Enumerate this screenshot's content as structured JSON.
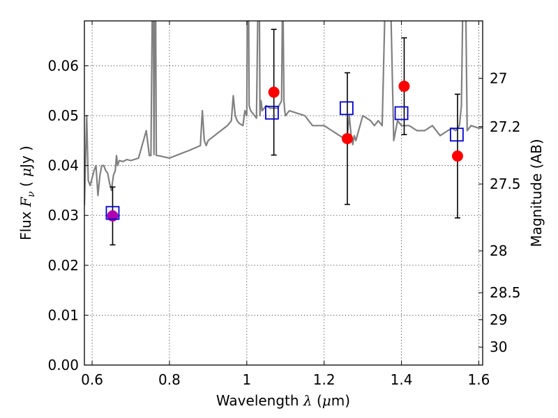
{
  "chart_data": {
    "type": "scatter",
    "title": "",
    "xlabel_parts": [
      "Wavelength  ",
      "λ",
      " (",
      "μ",
      "m)"
    ],
    "ylabel_parts": [
      "Flux  ",
      "F",
      "ν",
      "  ( ",
      "μ",
      "Jy )"
    ],
    "y2label": "Magnitude (AB)",
    "xlim": [
      0.58,
      1.61
    ],
    "ylim": [
      0.0,
      0.069
    ],
    "grid": true,
    "xticks": [
      0.6,
      0.8,
      1.0,
      1.2,
      1.4,
      1.6
    ],
    "xtick_labels": [
      "0.6",
      "0.8",
      "1",
      "1.2",
      "1.4",
      "1.6"
    ],
    "yticks": [
      0.0,
      0.01,
      0.02,
      0.03,
      0.04,
      0.05,
      0.06
    ],
    "ytick_labels": [
      "0.00",
      "0.01",
      "0.02",
      "0.03",
      "0.04",
      "0.05",
      "0.06"
    ],
    "y2ticks": [
      {
        "label": "27",
        "flux": 0.0575
      },
      {
        "label": "27.2",
        "flux": 0.0478
      },
      {
        "label": "27.5",
        "flux": 0.0363
      },
      {
        "label": "28",
        "flux": 0.0229
      },
      {
        "label": "28.5",
        "flux": 0.0145
      },
      {
        "label": "29",
        "flux": 0.0091
      },
      {
        "label": "30",
        "flux": 0.0036
      }
    ],
    "series": [
      {
        "kind": "line",
        "color": "#808080",
        "x": [
          0.58,
          0.586,
          0.59,
          0.595,
          0.6,
          0.605,
          0.61,
          0.615,
          0.62,
          0.625,
          0.63,
          0.635,
          0.64,
          0.645,
          0.65,
          0.655,
          0.66,
          0.663,
          0.666,
          0.67,
          0.68,
          0.69,
          0.7,
          0.72,
          0.74,
          0.748,
          0.752,
          0.756,
          0.758,
          0.76,
          0.762,
          0.764,
          0.766,
          0.77,
          0.8,
          0.85,
          0.88,
          0.885,
          0.89,
          0.895,
          0.9,
          0.95,
          0.96,
          0.965,
          0.97,
          0.975,
          0.98,
          0.99,
          0.995,
          1.0,
          1.002,
          1.004,
          1.006,
          1.01,
          1.02,
          1.025,
          1.03,
          1.032,
          1.034,
          1.037,
          1.04,
          1.05,
          1.06,
          1.08,
          1.09,
          1.092,
          1.094,
          1.096,
          1.098,
          1.1,
          1.11,
          1.15,
          1.17,
          1.2,
          1.22,
          1.24,
          1.25,
          1.26,
          1.265,
          1.27,
          1.272,
          1.274,
          1.278,
          1.282,
          1.3,
          1.32,
          1.33,
          1.34,
          1.35,
          1.36,
          1.37,
          1.38,
          1.39,
          1.4,
          1.42,
          1.44,
          1.46,
          1.48,
          1.5,
          1.52,
          1.53,
          1.54,
          1.55,
          1.555,
          1.56,
          1.565,
          1.57,
          1.58,
          1.6,
          1.61
        ],
        "y": [
          0.032,
          0.05,
          0.037,
          0.036,
          0.0375,
          0.039,
          0.04,
          0.034,
          0.038,
          0.04,
          0.04,
          0.039,
          0.0385,
          0.0365,
          0.035,
          0.038,
          0.039,
          0.042,
          0.04,
          0.041,
          0.0408,
          0.0412,
          0.041,
          0.0415,
          0.047,
          0.042,
          0.042,
          0.076,
          0.076,
          0.0422,
          0.076,
          0.076,
          0.042,
          0.042,
          0.0415,
          0.043,
          0.044,
          0.051,
          0.045,
          0.044,
          0.045,
          0.048,
          0.049,
          0.054,
          0.05,
          0.049,
          0.0485,
          0.048,
          0.051,
          0.05,
          0.08,
          0.08,
          0.052,
          0.051,
          0.05,
          0.0495,
          0.08,
          0.08,
          0.05,
          0.053,
          0.051,
          0.052,
          0.0515,
          0.0515,
          0.053,
          0.07,
          0.07,
          0.053,
          0.051,
          0.05,
          0.051,
          0.05,
          0.048,
          0.048,
          0.047,
          0.046,
          0.0455,
          0.046,
          0.05,
          0.046,
          0.045,
          0.0442,
          0.046,
          0.045,
          0.05,
          0.049,
          0.048,
          0.049,
          0.048,
          0.08,
          0.08,
          0.045,
          0.049,
          0.048,
          0.048,
          0.047,
          0.047,
          0.048,
          0.046,
          0.047,
          0.0475,
          0.047,
          0.048,
          0.052,
          0.08,
          0.08,
          0.047,
          0.048,
          0.0475,
          0.0476
        ]
      },
      {
        "kind": "errorbar",
        "color": "#000000",
        "x": [
          0.653,
          1.07,
          1.26,
          1.407,
          1.545
        ],
        "y": [
          0.0299,
          0.0547,
          0.0454,
          0.0559,
          0.0419
        ],
        "yerr": [
          0.0058,
          0.0126,
          0.0132,
          0.0097,
          0.0124
        ]
      },
      {
        "kind": "points",
        "color": "#ff0000",
        "x": [
          1.07,
          1.26,
          1.407,
          1.545
        ],
        "y": [
          0.0547,
          0.0454,
          0.0559,
          0.0419
        ]
      },
      {
        "kind": "points",
        "color": "#b000b0",
        "x": [
          0.653
        ],
        "y": [
          0.0299
        ]
      },
      {
        "kind": "open-squares",
        "color": "#0000cc",
        "x": [
          0.653,
          1.065,
          1.258,
          1.4,
          1.543
        ],
        "y": [
          0.0305,
          0.0506,
          0.0515,
          0.0505,
          0.0462
        ]
      }
    ]
  }
}
